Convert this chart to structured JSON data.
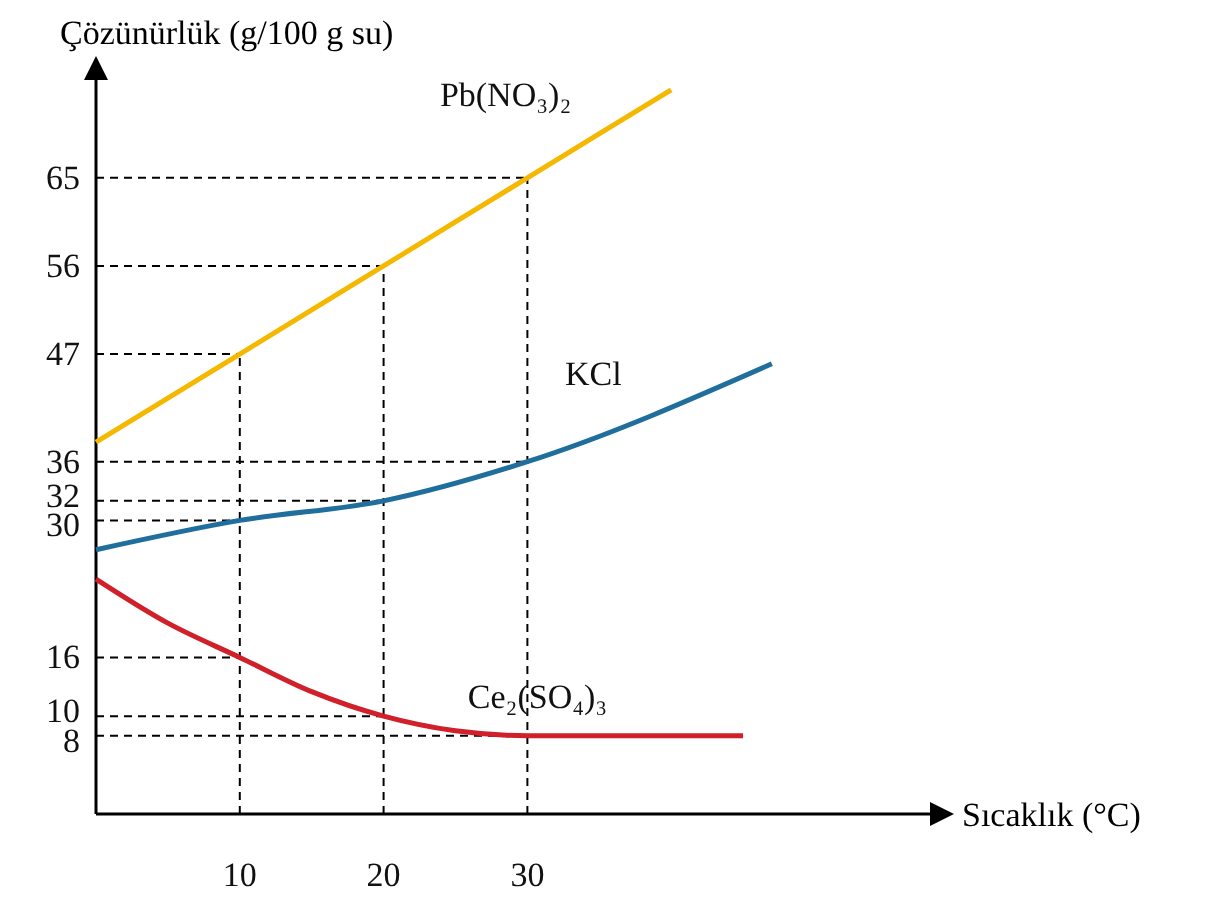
{
  "chart_data": {
    "type": "line",
    "ylabel": "Çözünürlük (g/100 g su)",
    "xlabel": "Sıcaklık (°C)",
    "xlim": [
      0,
      58
    ],
    "ylim": [
      0,
      75
    ],
    "xticks": [
      10,
      20,
      30
    ],
    "yticks": [
      8,
      10,
      16,
      30,
      32,
      36,
      47,
      56,
      65
    ],
    "grid": false,
    "legend": false,
    "marker": "none",
    "line_style": "solid",
    "series": [
      {
        "name": "Pb(NO₃)₂",
        "color": "#f5b800",
        "x": [
          0,
          10,
          20,
          30,
          40
        ],
        "values": [
          38,
          47,
          56,
          65,
          74
        ]
      },
      {
        "name": "KCl",
        "color": "#1f6e9c",
        "x": [
          0,
          10,
          20,
          30,
          47
        ],
        "values": [
          27,
          30,
          32,
          36,
          46
        ]
      },
      {
        "name": "Ce₂(SO₄)₃",
        "color": "#d0202a",
        "x": [
          0,
          5,
          10,
          15,
          20,
          25,
          30,
          45
        ],
        "values": [
          24,
          19.5,
          16,
          12.5,
          10,
          8.5,
          8,
          8
        ]
      }
    ],
    "ref_lines": [
      {
        "axis": "x",
        "value": 10,
        "line_style": "dashed",
        "color": "#000000"
      },
      {
        "axis": "x",
        "value": 20,
        "line_style": "dashed",
        "color": "#000000"
      },
      {
        "axis": "x",
        "value": 30,
        "line_style": "dashed",
        "color": "#000000"
      },
      {
        "axis": "y",
        "value": 8,
        "line_style": "dashed",
        "color": "#000000"
      },
      {
        "axis": "y",
        "value": 10,
        "line_style": "dashed",
        "color": "#000000"
      },
      {
        "axis": "y",
        "value": 16,
        "line_style": "dashed",
        "color": "#000000"
      },
      {
        "axis": "y",
        "value": 30,
        "line_style": "dashed",
        "color": "#000000"
      },
      {
        "axis": "y",
        "value": 32,
        "line_style": "dashed",
        "color": "#000000"
      },
      {
        "axis": "y",
        "value": 36,
        "line_style": "dashed",
        "color": "#000000"
      },
      {
        "axis": "y",
        "value": 47,
        "line_style": "dashed",
        "color": "#000000"
      },
      {
        "axis": "y",
        "value": 56,
        "line_style": "dashed",
        "color": "#000000"
      },
      {
        "axis": "y",
        "value": 65,
        "line_style": "dashed",
        "color": "#000000"
      }
    ]
  }
}
